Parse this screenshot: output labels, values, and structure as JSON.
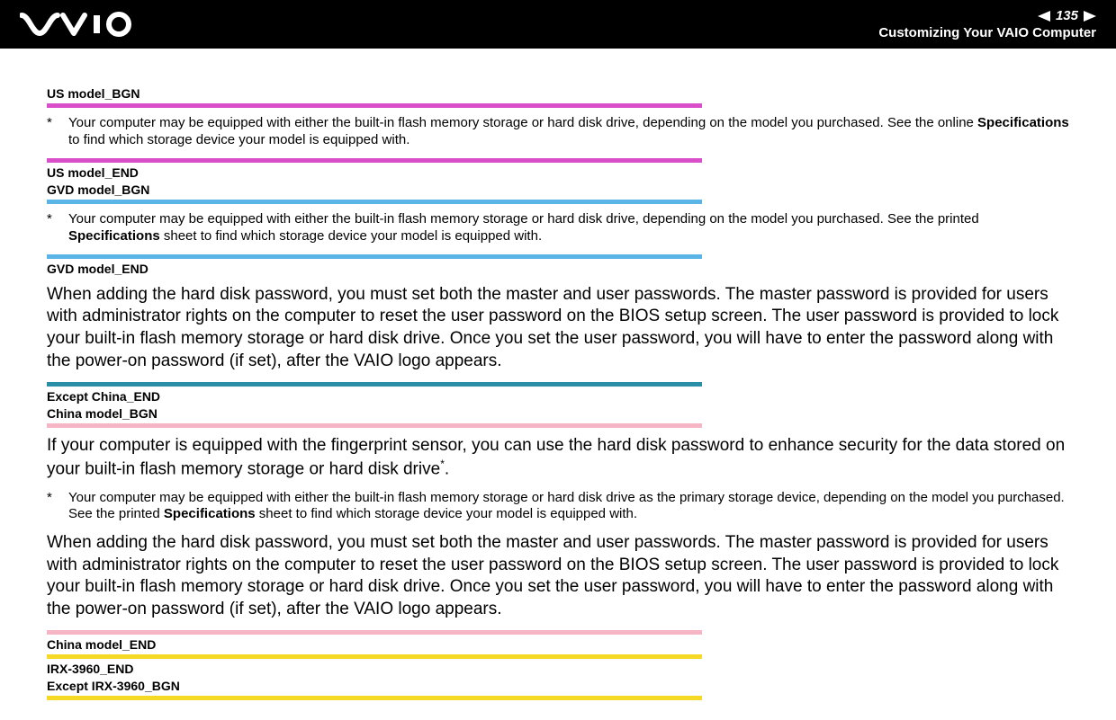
{
  "header": {
    "page_number": "135",
    "section_title": "Customizing Your VAIO Computer"
  },
  "colors": {
    "magenta": "#d94fc9",
    "cyan": "#5ab4e6",
    "dark_teal": "#2a8fa6",
    "pink": "#f5b5c4",
    "yellow": "#f5d925",
    "black": "#000000",
    "white": "#ffffff"
  },
  "blocks": [
    {
      "type": "label",
      "text": "US model_BGN"
    },
    {
      "type": "bar",
      "colorKey": "magenta"
    },
    {
      "type": "footnote",
      "text_pre": "Your computer may be equipped with either the built-in flash memory storage or hard disk drive, depending on the model you purchased. See the online ",
      "bold": "Specifications",
      "text_post": " to find which storage device your model is equipped with."
    },
    {
      "type": "bar",
      "colorKey": "magenta"
    },
    {
      "type": "label",
      "text": "US model_END"
    },
    {
      "type": "label",
      "text": "GVD model_BGN"
    },
    {
      "type": "bar",
      "colorKey": "cyan"
    },
    {
      "type": "footnote",
      "text_pre": "Your computer may be equipped with either the built-in flash memory storage or hard disk drive, depending on the model you purchased. See the printed ",
      "bold": "Specifications",
      "text_post": " sheet to find which storage device your model is equipped with."
    },
    {
      "type": "bar",
      "colorKey": "cyan"
    },
    {
      "type": "label",
      "text": "GVD model_END"
    },
    {
      "type": "para",
      "text": "When adding the hard disk password, you must set both the master and user passwords. The master password is provided for users with administrator rights on the computer to reset the user password on the BIOS setup screen. The user password is provided to lock your built-in flash memory storage or hard disk drive. Once you set the user password, you will have to enter the password along with the power-on password (if set), after the VAIO logo appears."
    },
    {
      "type": "bar",
      "colorKey": "dark_teal"
    },
    {
      "type": "label",
      "text": "Except China_END"
    },
    {
      "type": "label",
      "text": "China model_BGN"
    },
    {
      "type": "bar",
      "colorKey": "pink"
    },
    {
      "type": "para_sup",
      "text_pre": "If your computer is equipped with the fingerprint sensor, you can use the hard disk password to enhance security for the data stored on your built-in flash memory storage or hard disk drive",
      "sup": "*",
      "text_post": "."
    },
    {
      "type": "footnote",
      "text_pre": "Your computer may be equipped with either the built-in flash memory storage or hard disk drive as the primary storage device, depending on the model you purchased. See the printed ",
      "bold": "Specifications",
      "text_post": " sheet to find which storage device your model is equipped with."
    },
    {
      "type": "para",
      "text": "When adding the hard disk password, you must set both the master and user passwords. The master password is provided for users with administrator rights on the computer to reset the user password on the BIOS setup screen. The user password is provided to lock your built-in flash memory storage or hard disk drive. Once you set the user password, you will have to enter the password along with the power-on password (if set), after the VAIO logo appears."
    },
    {
      "type": "bar",
      "colorKey": "pink"
    },
    {
      "type": "label",
      "text": "China model_END"
    },
    {
      "type": "bar",
      "colorKey": "yellow"
    },
    {
      "type": "label",
      "text": "IRX-3960_END"
    },
    {
      "type": "label",
      "text": "Except IRX-3960_BGN"
    },
    {
      "type": "bar",
      "colorKey": "yellow"
    }
  ]
}
